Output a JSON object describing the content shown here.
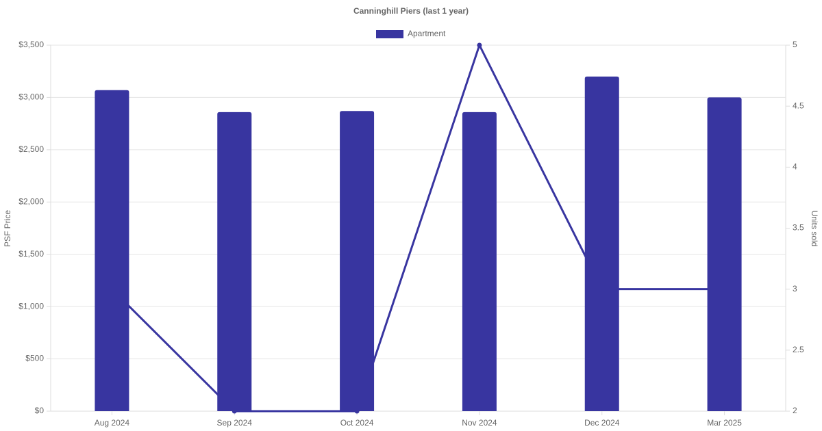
{
  "chart_data": {
    "type": "bar",
    "title": "Canninghill Piers (last 1 year)",
    "categories": [
      "Aug 2024",
      "Sep 2024",
      "Oct 2024",
      "Nov 2024",
      "Dec 2024",
      "Mar 2025"
    ],
    "series": [
      {
        "name": "Apartment",
        "type": "bar",
        "color": "#3835a0",
        "values": [
          3070,
          2860,
          2870,
          2860,
          3200,
          3000
        ]
      },
      {
        "type": "line",
        "axis": "y2",
        "color": "#3835a0",
        "values": [
          3,
          2,
          2,
          5,
          3,
          3
        ]
      }
    ],
    "y_label": "PSF Price",
    "y2_label": "Units sold",
    "ylim": [
      0,
      3500
    ],
    "yticks": [
      {
        "value": 0,
        "label": "$0"
      },
      {
        "value": 500,
        "label": "$500"
      },
      {
        "value": 1000,
        "label": "$1,000"
      },
      {
        "value": 1500,
        "label": "$1,500"
      },
      {
        "value": 2000,
        "label": "$2,000"
      },
      {
        "value": 2500,
        "label": "$2,500"
      },
      {
        "value": 3000,
        "label": "$3,000"
      },
      {
        "value": 3500,
        "label": "$3,500"
      }
    ],
    "y2lim": [
      2,
      5
    ],
    "y2ticks": [
      2,
      2.5,
      3,
      3.5,
      4,
      4.5,
      5
    ],
    "grid": true,
    "legend": "top"
  }
}
